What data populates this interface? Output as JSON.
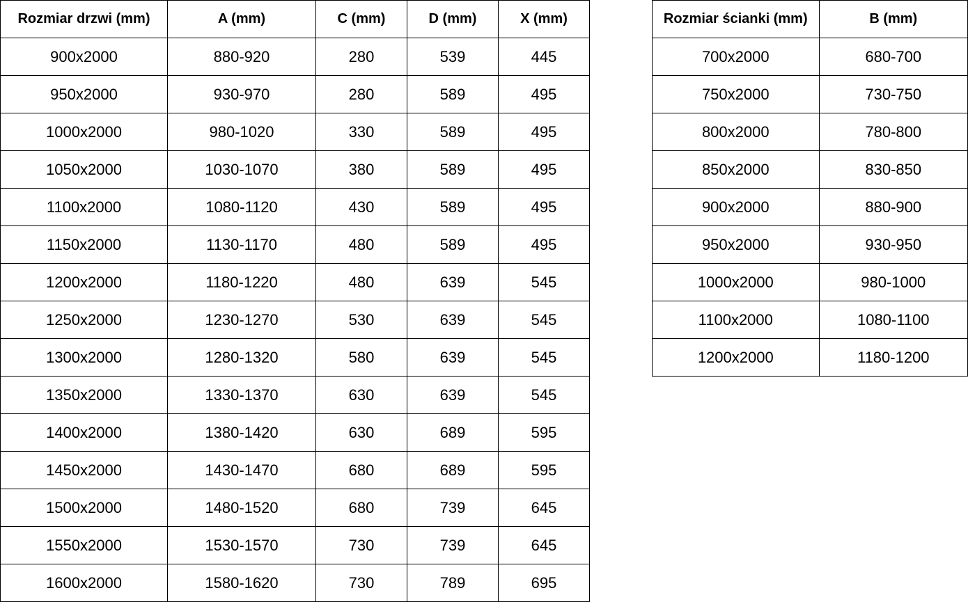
{
  "door_table": {
    "headers": [
      "Rozmiar drzwi (mm)",
      "A (mm)",
      "C (mm)",
      "D (mm)",
      "X (mm)"
    ],
    "rows": [
      [
        "900x2000",
        "880-920",
        "280",
        "539",
        "445"
      ],
      [
        "950x2000",
        "930-970",
        "280",
        "589",
        "495"
      ],
      [
        "1000x2000",
        "980-1020",
        "330",
        "589",
        "495"
      ],
      [
        "1050x2000",
        "1030-1070",
        "380",
        "589",
        "495"
      ],
      [
        "1100x2000",
        "1080-1120",
        "430",
        "589",
        "495"
      ],
      [
        "1150x2000",
        "1130-1170",
        "480",
        "589",
        "495"
      ],
      [
        "1200x2000",
        "1180-1220",
        "480",
        "639",
        "545"
      ],
      [
        "1250x2000",
        "1230-1270",
        "530",
        "639",
        "545"
      ],
      [
        "1300x2000",
        "1280-1320",
        "580",
        "639",
        "545"
      ],
      [
        "1350x2000",
        "1330-1370",
        "630",
        "639",
        "545"
      ],
      [
        "1400x2000",
        "1380-1420",
        "630",
        "689",
        "595"
      ],
      [
        "1450x2000",
        "1430-1470",
        "680",
        "689",
        "595"
      ],
      [
        "1500x2000",
        "1480-1520",
        "680",
        "739",
        "645"
      ],
      [
        "1550x2000",
        "1530-1570",
        "730",
        "739",
        "645"
      ],
      [
        "1600x2000",
        "1580-1620",
        "730",
        "789",
        "695"
      ]
    ]
  },
  "wall_table": {
    "headers": [
      "Rozmiar ścianki (mm)",
      "B (mm)"
    ],
    "rows": [
      [
        "700x2000",
        "680-700"
      ],
      [
        "750x2000",
        "730-750"
      ],
      [
        "800x2000",
        "780-800"
      ],
      [
        "850x2000",
        "830-850"
      ],
      [
        "900x2000",
        "880-900"
      ],
      [
        "950x2000",
        "930-950"
      ],
      [
        "1000x2000",
        "980-1000"
      ],
      [
        "1100x2000",
        "1080-1100"
      ],
      [
        "1200x2000",
        "1180-1200"
      ]
    ]
  }
}
